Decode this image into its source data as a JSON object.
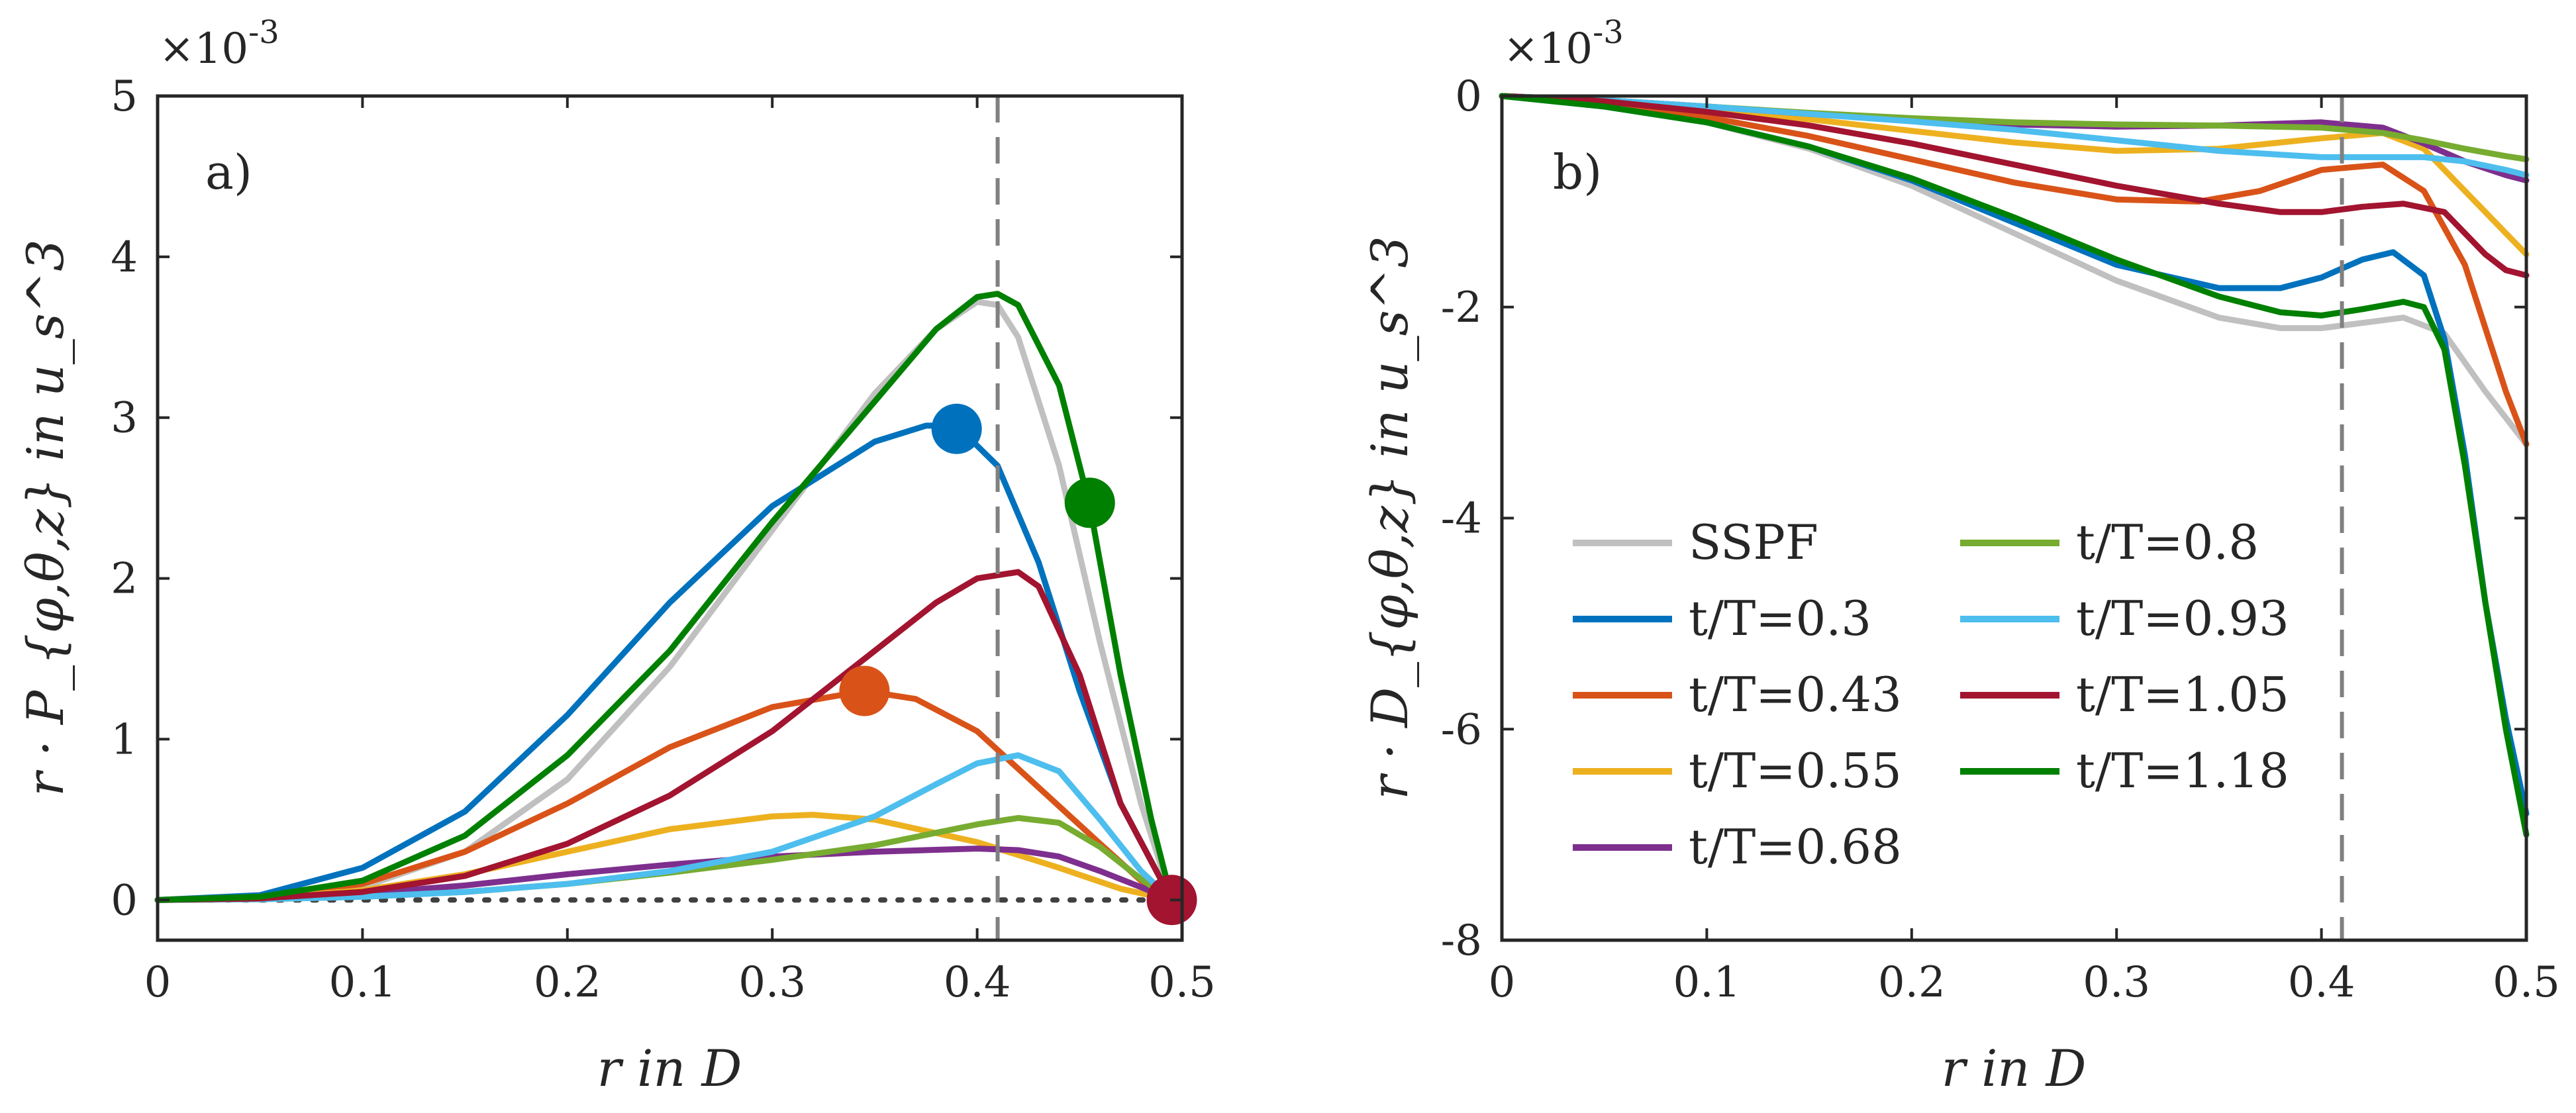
{
  "chart_data": [
    {
      "type": "line",
      "panel_label": "a)",
      "xlabel": "r in D",
      "ylabel": "r · P_{φ,θ,z} in u_s^3",
      "exponent_label": "×10",
      "exponent_power": "-3",
      "xlim": [
        0,
        0.5
      ],
      "ylim": [
        -0.25,
        5
      ],
      "xticks": [
        0,
        0.1,
        0.2,
        0.3,
        0.4,
        0.5
      ],
      "xtick_labels": [
        "0",
        "0.1",
        "0.2",
        "0.3",
        "0.4",
        "0.5"
      ],
      "yticks": [
        0,
        1,
        2,
        3,
        4,
        5
      ],
      "ytick_labels": [
        "0",
        "1",
        "2",
        "3",
        "4",
        "5"
      ],
      "vline_x": 0.41,
      "hline_y": 0,
      "series": [
        {
          "name": "SSPF",
          "color": "#c0c0c0",
          "x": [
            0,
            0.05,
            0.1,
            0.15,
            0.2,
            0.25,
            0.3,
            0.35,
            0.38,
            0.4,
            0.41,
            0.42,
            0.44,
            0.46,
            0.48,
            0.495
          ],
          "y": [
            0,
            0.01,
            0.08,
            0.3,
            0.75,
            1.45,
            2.3,
            3.15,
            3.55,
            3.72,
            3.7,
            3.5,
            2.7,
            1.6,
            0.6,
            0
          ]
        },
        {
          "name": "t/T=0.3",
          "color": "#0072bd",
          "x": [
            0,
            0.05,
            0.1,
            0.15,
            0.2,
            0.25,
            0.3,
            0.35,
            0.375,
            0.39,
            0.41,
            0.43,
            0.45,
            0.47,
            0.495
          ],
          "y": [
            0,
            0.03,
            0.2,
            0.55,
            1.15,
            1.85,
            2.45,
            2.85,
            2.95,
            2.95,
            2.7,
            2.1,
            1.3,
            0.6,
            0
          ]
        },
        {
          "name": "t/T=0.43",
          "color": "#d95319",
          "x": [
            0,
            0.05,
            0.1,
            0.15,
            0.2,
            0.25,
            0.3,
            0.345,
            0.37,
            0.4,
            0.43,
            0.46,
            0.48,
            0.495
          ],
          "y": [
            0,
            0.02,
            0.1,
            0.3,
            0.6,
            0.95,
            1.2,
            1.3,
            1.25,
            1.05,
            0.7,
            0.35,
            0.12,
            0
          ]
        },
        {
          "name": "t/T=0.55",
          "color": "#edb120",
          "x": [
            0,
            0.05,
            0.1,
            0.15,
            0.2,
            0.25,
            0.3,
            0.32,
            0.35,
            0.4,
            0.44,
            0.47,
            0.495
          ],
          "y": [
            0,
            0.01,
            0.06,
            0.16,
            0.3,
            0.44,
            0.52,
            0.53,
            0.5,
            0.36,
            0.2,
            0.07,
            0
          ]
        },
        {
          "name": "t/T=0.68",
          "color": "#7e2f8e",
          "x": [
            0,
            0.05,
            0.1,
            0.15,
            0.2,
            0.25,
            0.3,
            0.35,
            0.4,
            0.42,
            0.44,
            0.46,
            0.48,
            0.495
          ],
          "y": [
            0,
            0.01,
            0.04,
            0.09,
            0.16,
            0.22,
            0.27,
            0.3,
            0.32,
            0.31,
            0.27,
            0.18,
            0.08,
            0
          ]
        },
        {
          "name": "t/T=0.8",
          "color": "#77ac30",
          "x": [
            0,
            0.05,
            0.1,
            0.15,
            0.2,
            0.25,
            0.3,
            0.35,
            0.4,
            0.42,
            0.44,
            0.46,
            0.48,
            0.495
          ],
          "y": [
            0,
            0.005,
            0.02,
            0.05,
            0.1,
            0.17,
            0.25,
            0.34,
            0.47,
            0.51,
            0.48,
            0.33,
            0.13,
            0
          ]
        },
        {
          "name": "t/T=0.93",
          "color": "#4dbeee",
          "x": [
            0,
            0.05,
            0.1,
            0.15,
            0.2,
            0.25,
            0.3,
            0.35,
            0.38,
            0.4,
            0.42,
            0.44,
            0.46,
            0.48,
            0.495
          ],
          "y": [
            0,
            0.005,
            0.02,
            0.05,
            0.1,
            0.18,
            0.3,
            0.52,
            0.72,
            0.85,
            0.9,
            0.8,
            0.5,
            0.18,
            0
          ]
        },
        {
          "name": "t/T=1.05",
          "color": "#a2142f",
          "x": [
            0,
            0.05,
            0.1,
            0.15,
            0.2,
            0.25,
            0.3,
            0.35,
            0.38,
            0.4,
            0.42,
            0.43,
            0.45,
            0.47,
            0.495
          ],
          "y": [
            0,
            0.01,
            0.05,
            0.15,
            0.35,
            0.65,
            1.05,
            1.55,
            1.85,
            2.0,
            2.04,
            1.95,
            1.4,
            0.6,
            0
          ]
        },
        {
          "name": "t/T=1.18",
          "color": "#008000",
          "x": [
            0,
            0.05,
            0.1,
            0.15,
            0.2,
            0.25,
            0.3,
            0.35,
            0.38,
            0.4,
            0.41,
            0.42,
            0.44,
            0.455,
            0.47,
            0.485,
            0.495
          ],
          "y": [
            0,
            0.02,
            0.12,
            0.4,
            0.9,
            1.55,
            2.35,
            3.1,
            3.55,
            3.75,
            3.77,
            3.7,
            3.2,
            2.45,
            1.4,
            0.5,
            0
          ]
        }
      ],
      "markers": [
        {
          "series": "t/T=0.3",
          "x": 0.39,
          "y": 2.93,
          "color": "#0072bd"
        },
        {
          "series": "t/T=0.43",
          "x": 0.345,
          "y": 1.3,
          "color": "#d95319"
        },
        {
          "series": "t/T=1.18",
          "x": 0.455,
          "y": 2.47,
          "color": "#008000"
        },
        {
          "series": "t/T=1.05",
          "x": 0.495,
          "y": 0,
          "color": "#a2142f"
        }
      ]
    },
    {
      "type": "line",
      "panel_label": "b)",
      "xlabel": "r in D",
      "ylabel": "r · D_{φ,θ,z} in u_s^3",
      "exponent_label": "×10",
      "exponent_power": "-3",
      "xlim": [
        0,
        0.5
      ],
      "ylim": [
        -8,
        0
      ],
      "xticks": [
        0,
        0.1,
        0.2,
        0.3,
        0.4,
        0.5
      ],
      "xtick_labels": [
        "0",
        "0.1",
        "0.2",
        "0.3",
        "0.4",
        "0.5"
      ],
      "yticks": [
        0,
        -2,
        -4,
        -6,
        -8
      ],
      "ytick_labels": [
        "0",
        "-2",
        "-4",
        "-6",
        "-8"
      ],
      "vline_x": 0.41,
      "series": [
        {
          "name": "SSPF",
          "color": "#c0c0c0",
          "x": [
            0,
            0.05,
            0.1,
            0.15,
            0.2,
            0.25,
            0.3,
            0.35,
            0.38,
            0.4,
            0.42,
            0.44,
            0.46,
            0.48,
            0.5
          ],
          "y": [
            0,
            -0.1,
            -0.25,
            -0.5,
            -0.85,
            -1.3,
            -1.75,
            -2.1,
            -2.2,
            -2.2,
            -2.15,
            -2.1,
            -2.25,
            -2.8,
            -3.3
          ]
        },
        {
          "name": "t/T=0.3",
          "color": "#0072bd",
          "x": [
            0,
            0.05,
            0.1,
            0.15,
            0.2,
            0.25,
            0.3,
            0.35,
            0.38,
            0.4,
            0.42,
            0.435,
            0.45,
            0.46,
            0.47,
            0.48,
            0.49,
            0.5
          ],
          "y": [
            0,
            -0.1,
            -0.25,
            -0.48,
            -0.8,
            -1.2,
            -1.6,
            -1.82,
            -1.82,
            -1.72,
            -1.55,
            -1.48,
            -1.7,
            -2.3,
            -3.4,
            -4.8,
            -5.9,
            -6.8
          ]
        },
        {
          "name": "t/T=0.43",
          "color": "#d95319",
          "x": [
            0,
            0.05,
            0.1,
            0.15,
            0.2,
            0.25,
            0.3,
            0.34,
            0.37,
            0.4,
            0.43,
            0.45,
            0.47,
            0.49,
            0.5
          ],
          "y": [
            0,
            -0.08,
            -0.2,
            -0.38,
            -0.6,
            -0.82,
            -0.98,
            -1.0,
            -0.9,
            -0.7,
            -0.65,
            -0.9,
            -1.6,
            -2.8,
            -3.3
          ]
        },
        {
          "name": "t/T=0.55",
          "color": "#edb120",
          "x": [
            0,
            0.05,
            0.1,
            0.15,
            0.2,
            0.25,
            0.3,
            0.35,
            0.4,
            0.43,
            0.45,
            0.47,
            0.49,
            0.5
          ],
          "y": [
            0,
            -0.05,
            -0.12,
            -0.22,
            -0.33,
            -0.44,
            -0.52,
            -0.5,
            -0.4,
            -0.35,
            -0.5,
            -0.9,
            -1.3,
            -1.5
          ]
        },
        {
          "name": "t/T=0.68",
          "color": "#7e2f8e",
          "x": [
            0,
            0.05,
            0.1,
            0.15,
            0.2,
            0.25,
            0.3,
            0.35,
            0.4,
            0.43,
            0.45,
            0.47,
            0.49,
            0.5
          ],
          "y": [
            0,
            -0.04,
            -0.1,
            -0.17,
            -0.23,
            -0.27,
            -0.29,
            -0.28,
            -0.25,
            -0.3,
            -0.45,
            -0.62,
            -0.75,
            -0.8
          ]
        },
        {
          "name": "t/T=0.8",
          "color": "#77ac30",
          "x": [
            0,
            0.05,
            0.1,
            0.15,
            0.2,
            0.25,
            0.3,
            0.35,
            0.4,
            0.43,
            0.45,
            0.47,
            0.49,
            0.5
          ],
          "y": [
            0,
            -0.04,
            -0.1,
            -0.16,
            -0.21,
            -0.25,
            -0.27,
            -0.28,
            -0.3,
            -0.35,
            -0.42,
            -0.5,
            -0.57,
            -0.6
          ]
        },
        {
          "name": "t/T=0.93",
          "color": "#4dbeee",
          "x": [
            0,
            0.05,
            0.1,
            0.15,
            0.2,
            0.25,
            0.3,
            0.35,
            0.4,
            0.43,
            0.45,
            0.47,
            0.49,
            0.5
          ],
          "y": [
            0,
            -0.04,
            -0.1,
            -0.17,
            -0.24,
            -0.32,
            -0.42,
            -0.52,
            -0.58,
            -0.58,
            -0.58,
            -0.62,
            -0.7,
            -0.75
          ]
        },
        {
          "name": "t/T=1.05",
          "color": "#a2142f",
          "x": [
            0,
            0.05,
            0.1,
            0.15,
            0.2,
            0.25,
            0.3,
            0.35,
            0.38,
            0.4,
            0.42,
            0.44,
            0.46,
            0.47,
            0.48,
            0.49,
            0.5
          ],
          "y": [
            0,
            -0.05,
            -0.15,
            -0.28,
            -0.45,
            -0.65,
            -0.85,
            -1.02,
            -1.1,
            -1.1,
            -1.05,
            -1.02,
            -1.1,
            -1.3,
            -1.5,
            -1.65,
            -1.7
          ]
        },
        {
          "name": "t/T=1.18",
          "color": "#008000",
          "x": [
            0,
            0.05,
            0.1,
            0.15,
            0.2,
            0.25,
            0.3,
            0.35,
            0.38,
            0.4,
            0.42,
            0.44,
            0.45,
            0.46,
            0.47,
            0.48,
            0.49,
            0.5
          ],
          "y": [
            0,
            -0.1,
            -0.25,
            -0.48,
            -0.78,
            -1.15,
            -1.55,
            -1.9,
            -2.05,
            -2.08,
            -2.02,
            -1.95,
            -2.0,
            -2.4,
            -3.5,
            -4.8,
            -6.0,
            -7.0
          ]
        }
      ],
      "legend": {
        "placement": "lower-left",
        "items": [
          "SSPF",
          "t/T=0.3",
          "t/T=0.43",
          "t/T=0.55",
          "t/T=0.68",
          "t/T=0.8",
          "t/T=0.93",
          "t/T=1.05",
          "t/T=1.18"
        ]
      }
    }
  ]
}
